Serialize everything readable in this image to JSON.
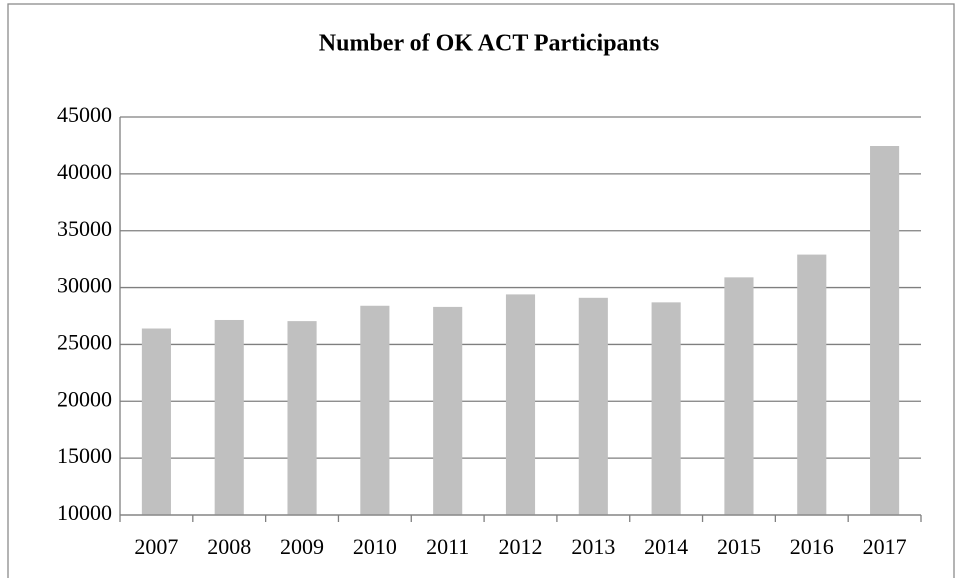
{
  "chart_data": {
    "type": "bar",
    "title": "Number of OK ACT Participants",
    "categories": [
      "2007",
      "2008",
      "2009",
      "2010",
      "2011",
      "2012",
      "2013",
      "2014",
      "2015",
      "2016",
      "2017"
    ],
    "values": [
      26400,
      27150,
      27050,
      28400,
      28300,
      29400,
      29100,
      28700,
      30900,
      32900,
      42450
    ],
    "color": "#c0c0c0",
    "ylim": [
      10000,
      45000
    ],
    "yticks": [
      10000,
      15000,
      20000,
      25000,
      30000,
      35000,
      40000,
      45000
    ],
    "grid": true
  }
}
